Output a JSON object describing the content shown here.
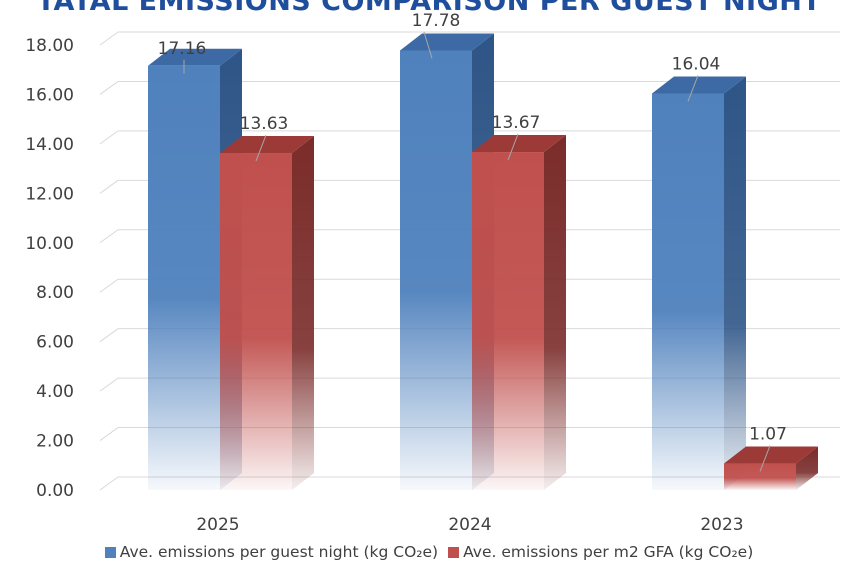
{
  "chart_data": {
    "type": "bar",
    "title": "TATAL EMISSIONS COMPARISON PER GUEST NIGHT",
    "categories": [
      "2025",
      "2024",
      "2023"
    ],
    "series": [
      {
        "name": "Ave. emissions per guest night (kg CO₂e)",
        "values": [
          17.16,
          17.78,
          16.04
        ],
        "color": "#4f81bd"
      },
      {
        "name": "Ave. emissions per m2 GFA (kg CO₂e)",
        "values": [
          13.63,
          13.67,
          1.07
        ],
        "color": "#c0504d"
      }
    ],
    "y_tick_labels": [
      "0.00",
      "2.00",
      "4.00",
      "6.00",
      "8.00",
      "10.00",
      "12.00",
      "14.00",
      "16.00",
      "18.00"
    ],
    "data_labels": [
      [
        "17.16",
        "17.78",
        "16.04"
      ],
      [
        "13.63",
        "13.67",
        "1.07"
      ]
    ],
    "ylim": [
      0,
      18
    ],
    "grid": true,
    "legend_position": "bottom",
    "style": "3d-gradient"
  }
}
